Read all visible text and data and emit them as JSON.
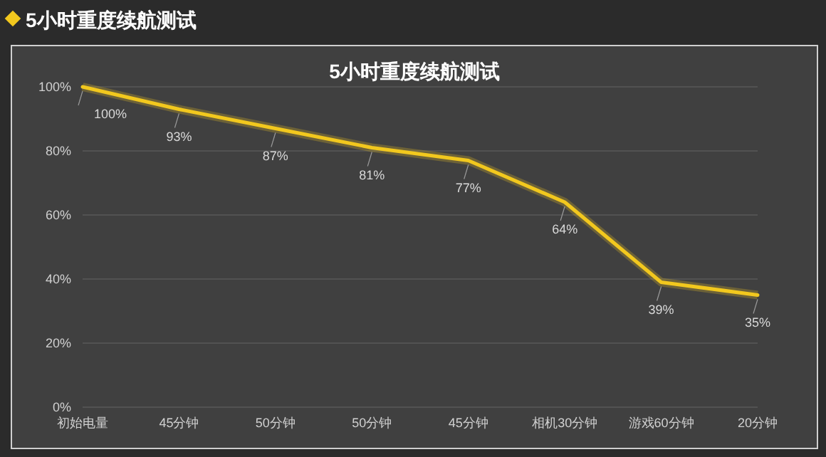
{
  "chart_data": {
    "type": "line",
    "title": "5小时重度续航测试",
    "subtitle": "5小时重度续航测试",
    "categories": [
      "初始电量",
      "45分钟",
      "50分钟",
      "50分钟",
      "45分钟",
      "相机30分钟",
      "游戏60分钟",
      "20分钟"
    ],
    "series": [
      {
        "color": "#f2c81e",
        "values": [
          100,
          93,
          87,
          81,
          77,
          64,
          39,
          35
        ]
      }
    ],
    "ylim": [
      0,
      100
    ],
    "yticks": [
      {
        "value": 0,
        "label": "0%"
      },
      {
        "value": 20,
        "label": "20%"
      },
      {
        "value": 40,
        "label": "40%"
      },
      {
        "value": 60,
        "label": "60%"
      },
      {
        "value": 80,
        "label": "80%"
      },
      {
        "value": 100,
        "label": "100%"
      }
    ],
    "grid": "y",
    "marker": "none",
    "line_style": "solid",
    "value_labels": [
      "100%",
      "93%",
      "87%",
      "81%",
      "77%",
      "64%",
      "39%",
      "35%"
    ]
  }
}
